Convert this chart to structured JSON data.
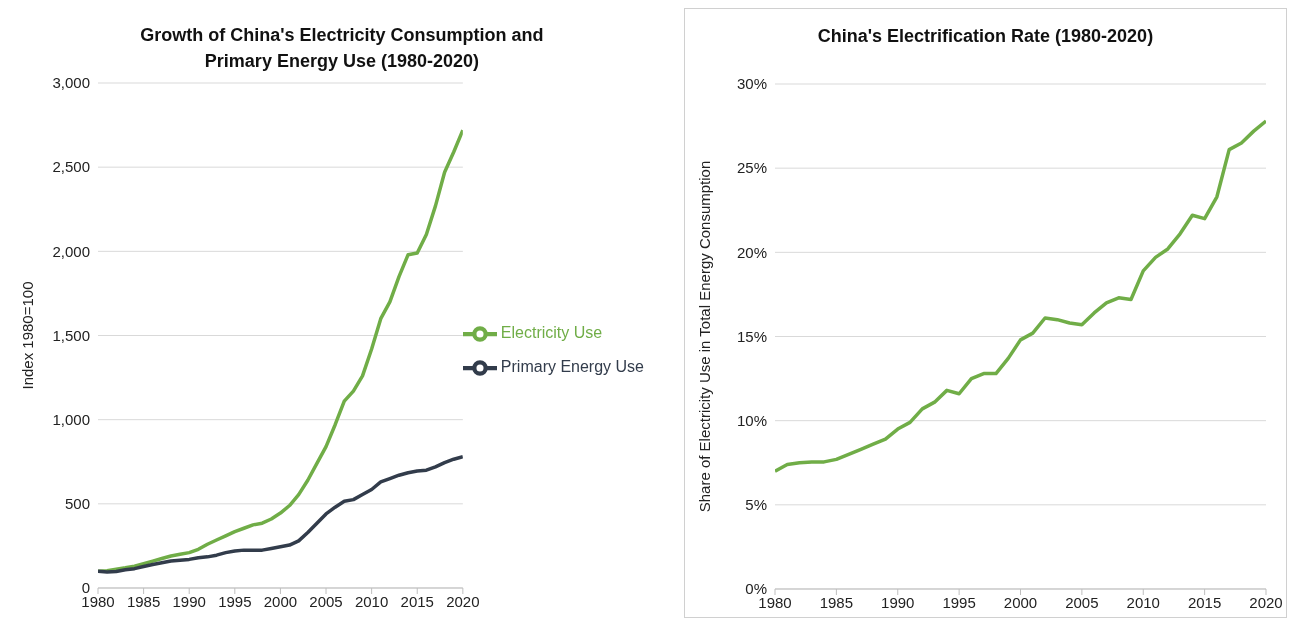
{
  "chart_data": [
    {
      "type": "line",
      "title": "Growth of China's Electricity Consumption and Primary Energy Use (1980-2020)",
      "ylabel": "Index 1980=100",
      "x": [
        1980,
        1981,
        1982,
        1983,
        1984,
        1985,
        1986,
        1987,
        1988,
        1989,
        1990,
        1991,
        1992,
        1993,
        1994,
        1995,
        1996,
        1997,
        1998,
        1999,
        2000,
        2001,
        2002,
        2003,
        2004,
        2005,
        2006,
        2007,
        2008,
        2009,
        2010,
        2011,
        2012,
        2013,
        2014,
        2015,
        2016,
        2017,
        2018,
        2019,
        2020
      ],
      "series": [
        {
          "name": "Electricity Use",
          "color": "#70ad47",
          "values": [
            100,
            103,
            112,
            120,
            130,
            145,
            160,
            175,
            190,
            200,
            210,
            230,
            260,
            285,
            310,
            335,
            355,
            375,
            385,
            410,
            445,
            490,
            555,
            640,
            740,
            840,
            970,
            1110,
            1170,
            1260,
            1420,
            1600,
            1700,
            1850,
            1980,
            1990,
            2100,
            2270,
            2470,
            2590,
            2720
          ]
        },
        {
          "name": "Primary Energy Use",
          "color": "#323c4b",
          "values": [
            100,
            95,
            98,
            108,
            115,
            128,
            140,
            150,
            160,
            165,
            170,
            180,
            185,
            195,
            210,
            220,
            225,
            225,
            225,
            235,
            245,
            255,
            280,
            330,
            385,
            440,
            480,
            515,
            525,
            555,
            585,
            630,
            650,
            670,
            685,
            695,
            700,
            720,
            745,
            765,
            780
          ]
        }
      ],
      "xlim": [
        1980,
        2020
      ],
      "xticks": [
        1980,
        1985,
        1990,
        1995,
        2000,
        2005,
        2010,
        2015,
        2020
      ],
      "ylim": [
        0,
        3000
      ],
      "yticks": [
        0,
        500,
        {
          "value": 1000,
          "label": "1,000"
        },
        {
          "value": 1500,
          "label": "1,500"
        },
        {
          "value": 2000,
          "label": "2,000"
        },
        {
          "value": 2500,
          "label": "2,500"
        },
        {
          "value": 3000,
          "label": "3,000"
        }
      ],
      "grid": "y",
      "legend": "right"
    },
    {
      "type": "line",
      "title": "China's Electrification Rate (1980-2020)",
      "ylabel": "Share of Electricity Use in Total Energy Consumption",
      "x": [
        1980,
        1981,
        1982,
        1983,
        1984,
        1985,
        1986,
        1987,
        1988,
        1989,
        1990,
        1991,
        1992,
        1993,
        1994,
        1995,
        1996,
        1997,
        1998,
        1999,
        2000,
        2001,
        2002,
        2003,
        2004,
        2005,
        2006,
        2007,
        2008,
        2009,
        2010,
        2011,
        2012,
        2013,
        2014,
        2015,
        2016,
        2017,
        2018,
        2019,
        2020
      ],
      "series": [
        {
          "color": "#70ad47",
          "values": [
            7.0,
            7.4,
            7.5,
            7.55,
            7.55,
            7.7,
            8.0,
            8.3,
            8.6,
            8.9,
            9.5,
            9.9,
            10.7,
            11.1,
            11.8,
            11.6,
            12.5,
            12.8,
            12.8,
            13.7,
            14.8,
            15.2,
            16.1,
            16.0,
            15.8,
            15.7,
            16.4,
            17.0,
            17.3,
            17.2,
            18.9,
            19.7,
            20.2,
            21.1,
            22.2,
            22.0,
            23.3,
            26.1,
            26.5,
            27.2,
            27.8
          ]
        }
      ],
      "xlim": [
        1980,
        2020
      ],
      "xticks": [
        1980,
        1985,
        1990,
        1995,
        2000,
        2005,
        2010,
        2015,
        2020
      ],
      "ylim": [
        0,
        30
      ],
      "yticks": [
        {
          "value": 0,
          "label": "0%"
        },
        {
          "value": 5,
          "label": "5%"
        },
        {
          "value": 10,
          "label": "10%"
        },
        {
          "value": 15,
          "label": "15%"
        },
        {
          "value": 20,
          "label": "20%"
        },
        {
          "value": 25,
          "label": "25%"
        },
        {
          "value": 30,
          "label": "30%"
        }
      ],
      "grid": "y",
      "legend": false
    }
  ]
}
